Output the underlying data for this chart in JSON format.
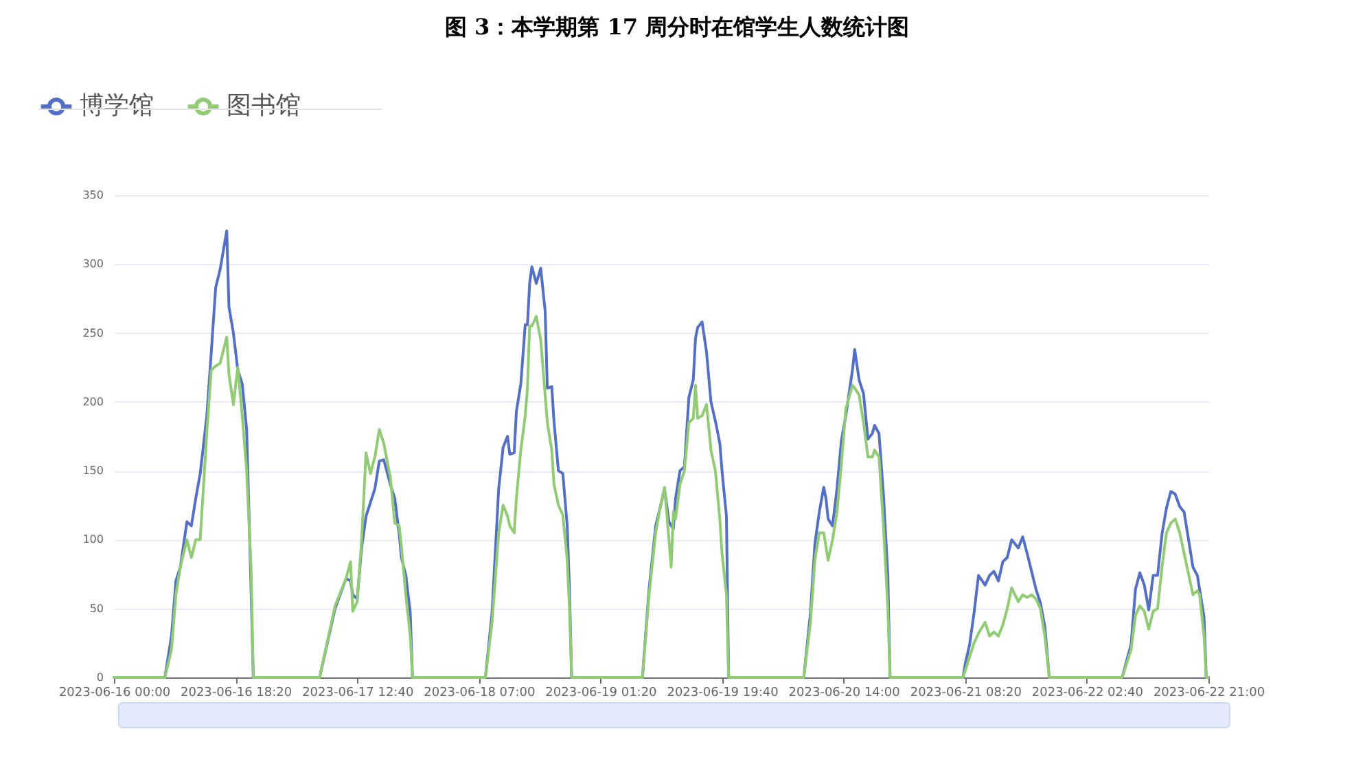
{
  "chart_data": {
    "type": "line",
    "title": "图 3：本学期第 17 周分时在馆学生人数统计图",
    "x": [
      "2023-06-16T00:00",
      "2023-06-16T07:40",
      "2023-06-16T08:40",
      "2023-06-16T09:20",
      "2023-06-16T10:00",
      "2023-06-16T11:00",
      "2023-06-16T11:40",
      "2023-06-16T12:20",
      "2023-06-16T13:00",
      "2023-06-16T14:00",
      "2023-06-16T14:40",
      "2023-06-16T15:20",
      "2023-06-16T16:00",
      "2023-06-16T17:00",
      "2023-06-16T17:20",
      "2023-06-16T18:00",
      "2023-06-16T18:40",
      "2023-06-16T19:20",
      "2023-06-16T20:00",
      "2023-06-16T20:40",
      "2023-06-16T21:00",
      "2023-06-17T07:00",
      "2023-06-17T09:20",
      "2023-06-17T11:00",
      "2023-06-17T11:40",
      "2023-06-17T12:00",
      "2023-06-17T12:40",
      "2023-06-17T13:20",
      "2023-06-17T14:00",
      "2023-06-17T14:40",
      "2023-06-17T15:20",
      "2023-06-17T16:00",
      "2023-06-17T16:40",
      "2023-06-17T17:40",
      "2023-06-17T18:20",
      "2023-06-17T19:00",
      "2023-06-17T19:20",
      "2023-06-17T20:00",
      "2023-06-17T20:40",
      "2023-06-17T21:00",
      "2023-06-18T08:00",
      "2023-06-18T09:00",
      "2023-06-18T10:00",
      "2023-06-18T10:40",
      "2023-06-18T11:20",
      "2023-06-18T11:40",
      "2023-06-18T12:20",
      "2023-06-18T12:40",
      "2023-06-18T13:20",
      "2023-06-18T14:00",
      "2023-06-18T14:20",
      "2023-06-18T14:40",
      "2023-06-18T15:00",
      "2023-06-18T15:40",
      "2023-06-18T16:20",
      "2023-06-18T17:00",
      "2023-06-18T17:20",
      "2023-06-18T18:00",
      "2023-06-18T18:20",
      "2023-06-18T19:00",
      "2023-06-18T19:40",
      "2023-06-18T20:20",
      "2023-06-18T20:40",
      "2023-06-18T21:00",
      "2023-06-19T07:40",
      "2023-06-19T08:40",
      "2023-06-19T09:40",
      "2023-06-19T10:20",
      "2023-06-19T11:00",
      "2023-06-19T11:40",
      "2023-06-19T12:00",
      "2023-06-19T12:20",
      "2023-06-19T12:40",
      "2023-06-19T13:20",
      "2023-06-19T14:00",
      "2023-06-19T14:40",
      "2023-06-19T15:20",
      "2023-06-19T15:40",
      "2023-06-19T16:00",
      "2023-06-19T16:40",
      "2023-06-19T17:20",
      "2023-06-19T18:00",
      "2023-06-19T18:40",
      "2023-06-19T19:20",
      "2023-06-19T19:40",
      "2023-06-19T20:20",
      "2023-06-19T20:40",
      "2023-06-20T08:00",
      "2023-06-20T09:00",
      "2023-06-20T09:40",
      "2023-06-20T10:20",
      "2023-06-20T11:00",
      "2023-06-20T11:20",
      "2023-06-20T11:40",
      "2023-06-20T12:20",
      "2023-06-20T13:00",
      "2023-06-20T13:40",
      "2023-06-20T14:20",
      "2023-06-20T15:20",
      "2023-06-20T15:40",
      "2023-06-20T16:20",
      "2023-06-20T17:00",
      "2023-06-20T17:40",
      "2023-06-20T18:20",
      "2023-06-20T18:40",
      "2023-06-20T19:20",
      "2023-06-20T20:00",
      "2023-06-20T20:40",
      "2023-06-20T21:00",
      "2023-06-21T08:00",
      "2023-06-21T08:20",
      "2023-06-21T09:00",
      "2023-06-21T09:40",
      "2023-06-21T10:20",
      "2023-06-21T11:20",
      "2023-06-21T12:00",
      "2023-06-21T12:40",
      "2023-06-21T13:20",
      "2023-06-21T14:00",
      "2023-06-21T14:40",
      "2023-06-21T15:20",
      "2023-06-21T16:20",
      "2023-06-21T17:00",
      "2023-06-21T17:40",
      "2023-06-21T18:20",
      "2023-06-21T19:00",
      "2023-06-21T19:40",
      "2023-06-21T20:20",
      "2023-06-21T21:00",
      "2023-06-22T08:00",
      "2023-06-22T09:20",
      "2023-06-22T10:00",
      "2023-06-22T10:40",
      "2023-06-22T11:20",
      "2023-06-22T12:00",
      "2023-06-22T12:40",
      "2023-06-22T13:20",
      "2023-06-22T14:00",
      "2023-06-22T14:40",
      "2023-06-22T15:20",
      "2023-06-22T16:00",
      "2023-06-22T16:40",
      "2023-06-22T17:20",
      "2023-06-22T18:00",
      "2023-06-22T18:40",
      "2023-06-22T19:20",
      "2023-06-22T19:40",
      "2023-06-22T20:20",
      "2023-06-22T20:40",
      "2023-06-22T21:00"
    ],
    "series": [
      {
        "name": "博学馆",
        "color": "#5470c6",
        "values": [
          0,
          0,
          30,
          70,
          80,
          113,
          110,
          130,
          148,
          190,
          236,
          283,
          296,
          324,
          269,
          250,
          223,
          213,
          180,
          64,
          0,
          0,
          50,
          72,
          70,
          60,
          57,
          94,
          117,
          127,
          137,
          157,
          158,
          140,
          130,
          104,
          87,
          74,
          47,
          0,
          0,
          47,
          137,
          167,
          175,
          162,
          163,
          193,
          213,
          256,
          256,
          286,
          298,
          286,
          297,
          266,
          210,
          211,
          186,
          150,
          148,
          110,
          64,
          0,
          0,
          64,
          110,
          123,
          137,
          113,
          110,
          108,
          130,
          150,
          153,
          203,
          216,
          246,
          254,
          258,
          236,
          200,
          186,
          170,
          150,
          117,
          0,
          0,
          47,
          97,
          120,
          138,
          130,
          115,
          110,
          137,
          172,
          190,
          223,
          238,
          216,
          206,
          173,
          177,
          183,
          177,
          133,
          74,
          0,
          0,
          10,
          24,
          47,
          74,
          67,
          74,
          77,
          70,
          84,
          87,
          100,
          94,
          102,
          90,
          77,
          64,
          54,
          37,
          0,
          0,
          24,
          64,
          76,
          67,
          49,
          74,
          74,
          104,
          123,
          135,
          133,
          124,
          120,
          100,
          80,
          74,
          64,
          44,
          0,
          0
        ]
      },
      {
        "name": "图书馆",
        "color": "#91cc75",
        "values": [
          0,
          0,
          20,
          60,
          80,
          100,
          87,
          100,
          100,
          178,
          223,
          226,
          228,
          247,
          220,
          198,
          225,
          190,
          150,
          80,
          0,
          0,
          52,
          72,
          84,
          48,
          55,
          100,
          163,
          148,
          160,
          180,
          170,
          145,
          112,
          110,
          95,
          60,
          30,
          0,
          0,
          40,
          105,
          125,
          117,
          110,
          105,
          130,
          165,
          190,
          210,
          255,
          255,
          262,
          245,
          205,
          185,
          165,
          140,
          125,
          118,
          85,
          50,
          0,
          0,
          60,
          105,
          123,
          138,
          100,
          80,
          120,
          115,
          140,
          150,
          185,
          188,
          212,
          188,
          190,
          198,
          165,
          150,
          115,
          90,
          60,
          0,
          0,
          40,
          85,
          105,
          105,
          95,
          85,
          100,
          120,
          155,
          195,
          212,
          210,
          205,
          185,
          160,
          160,
          165,
          160,
          110,
          50,
          0,
          0,
          5,
          15,
          25,
          32,
          40,
          30,
          33,
          30,
          38,
          50,
          65,
          55,
          60,
          58,
          60,
          57,
          50,
          30,
          0,
          0,
          20,
          45,
          52,
          48,
          35,
          48,
          50,
          80,
          105,
          112,
          115,
          105,
          90,
          75,
          60,
          63,
          60,
          30,
          0,
          0
        ]
      }
    ],
    "xlim": [
      "2023-06-16T00:00",
      "2023-06-22T21:00"
    ],
    "xticks": [
      {
        "value": "2023-06-16T00:00",
        "label": "2023-06-16 00:00"
      },
      {
        "value": "2023-06-16T18:20",
        "label": "2023-06-16 18:20"
      },
      {
        "value": "2023-06-17T12:40",
        "label": "2023-06-17 12:40"
      },
      {
        "value": "2023-06-18T07:00",
        "label": "2023-06-18 07:00"
      },
      {
        "value": "2023-06-19T01:20",
        "label": "2023-06-19 01:20"
      },
      {
        "value": "2023-06-19T19:40",
        "label": "2023-06-19 19:40"
      },
      {
        "value": "2023-06-20T14:00",
        "label": "2023-06-20 14:00"
      },
      {
        "value": "2023-06-21T08:20",
        "label": "2023-06-21 08:20"
      },
      {
        "value": "2023-06-22T02:40",
        "label": "2023-06-22 02:40"
      },
      {
        "value": "2023-06-22T21:00",
        "label": "2023-06-22 21:00"
      }
    ],
    "ylim": [
      0,
      350
    ],
    "yticks": [
      0,
      50,
      100,
      150,
      200,
      250,
      300,
      350
    ],
    "grid": "y",
    "legend": "top left",
    "marker": "none",
    "line_style": "solid"
  }
}
